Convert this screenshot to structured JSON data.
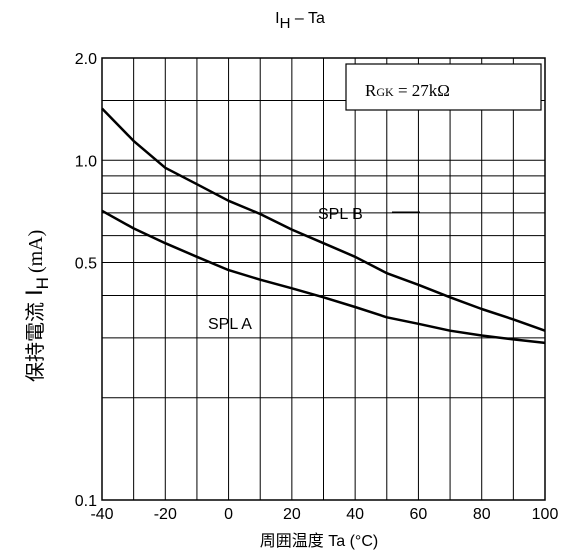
{
  "chart_data": {
    "type": "line",
    "title_main": "I",
    "title_sub": "H",
    "title_rest": " – Ta",
    "xlabel": "周囲温度 Ta (°C)",
    "ylabel_jp": "保持電流",
    "ylabel_sym": "I",
    "ylabel_sub": "H",
    "ylabel_unit": "(mA)",
    "x_ticks": [
      "-40",
      "-20",
      "0",
      "20",
      "40",
      "60",
      "80",
      "100"
    ],
    "y_ticks": [
      "2.0",
      "1.0",
      "0.5",
      "0.1"
    ],
    "xlim": [
      -40,
      100
    ],
    "ylim": [
      0.1,
      2.0
    ],
    "y_scale": "log",
    "grid": true,
    "annotation": {
      "main": "R",
      "sub": "GK",
      "rest": " = 27kΩ"
    },
    "series": [
      {
        "name": "SPL B",
        "x": [
          -40,
          -30,
          -20,
          -10,
          0,
          10,
          20,
          30,
          40,
          50,
          60,
          70,
          80,
          90,
          100
        ],
        "y": [
          1.42,
          1.14,
          0.95,
          0.85,
          0.76,
          0.695,
          0.625,
          0.57,
          0.52,
          0.465,
          0.43,
          0.395,
          0.365,
          0.34,
          0.315
        ]
      },
      {
        "name": "SPL A",
        "x": [
          -40,
          -30,
          -20,
          -10,
          0,
          10,
          20,
          30,
          40,
          50,
          60,
          70,
          80,
          90,
          100
        ],
        "y": [
          0.71,
          0.63,
          0.57,
          0.52,
          0.475,
          0.445,
          0.42,
          0.395,
          0.37,
          0.345,
          0.33,
          0.315,
          0.305,
          0.297,
          0.29
        ]
      }
    ]
  }
}
